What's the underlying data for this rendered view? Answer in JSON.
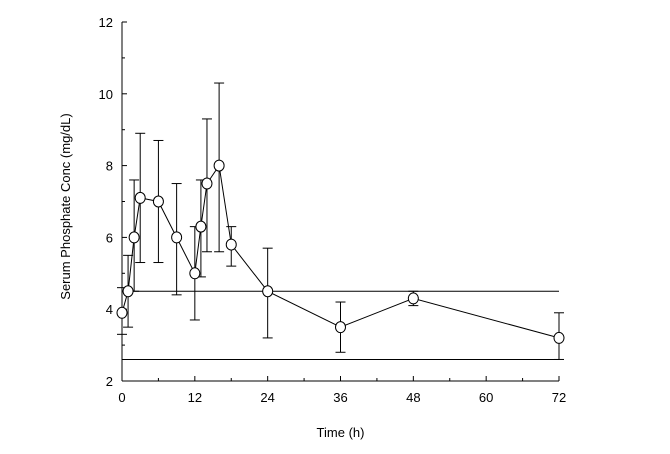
{
  "chart_data": {
    "type": "line",
    "title": "",
    "xlabel": "Time (h)",
    "ylabel": "Serum Phosphate Conc (mg/dL)",
    "xlim": [
      0,
      72
    ],
    "ylim": [
      2,
      12
    ],
    "xticks": [
      0,
      12,
      24,
      36,
      48,
      60,
      72
    ],
    "yticks": [
      2,
      4,
      6,
      8,
      10,
      12
    ],
    "grid": false,
    "legend": "none",
    "series": [
      {
        "marker": "open-circle",
        "color": "#000000",
        "points": [
          {
            "x": 0,
            "y": 3.9,
            "err_low": 3.3,
            "err_high": 4.6
          },
          {
            "x": 1,
            "y": 4.5,
            "err_low": 3.5,
            "err_high": 5.5
          },
          {
            "x": 2,
            "y": 6.0,
            "err_low": 4.5,
            "err_high": 7.6
          },
          {
            "x": 3,
            "y": 7.1,
            "err_low": 5.3,
            "err_high": 8.9
          },
          {
            "x": 6,
            "y": 7.0,
            "err_low": 5.3,
            "err_high": 8.7
          },
          {
            "x": 9,
            "y": 6.0,
            "err_low": 4.4,
            "err_high": 7.5
          },
          {
            "x": 12,
            "y": 5.0,
            "err_low": 3.7,
            "err_high": 6.3
          },
          {
            "x": 13,
            "y": 6.3,
            "err_low": 4.9,
            "err_high": 7.6
          },
          {
            "x": 14,
            "y": 7.5,
            "err_low": 5.6,
            "err_high": 9.3
          },
          {
            "x": 16,
            "y": 8.0,
            "err_low": 5.6,
            "err_high": 10.3
          },
          {
            "x": 18,
            "y": 5.8,
            "err_low": 5.2,
            "err_high": 6.3
          },
          {
            "x": 24,
            "y": 4.5,
            "err_low": 3.2,
            "err_high": 5.7
          },
          {
            "x": 36,
            "y": 3.5,
            "err_low": 2.8,
            "err_high": 4.2
          },
          {
            "x": 48,
            "y": 4.3,
            "err_low": 4.1,
            "err_high": 4.5
          },
          {
            "x": 72,
            "y": 3.2,
            "err_low": 2.6,
            "err_high": 3.9
          }
        ]
      }
    ],
    "reference_lines": [
      {
        "y": 4.5
      },
      {
        "y": 2.6
      }
    ]
  }
}
